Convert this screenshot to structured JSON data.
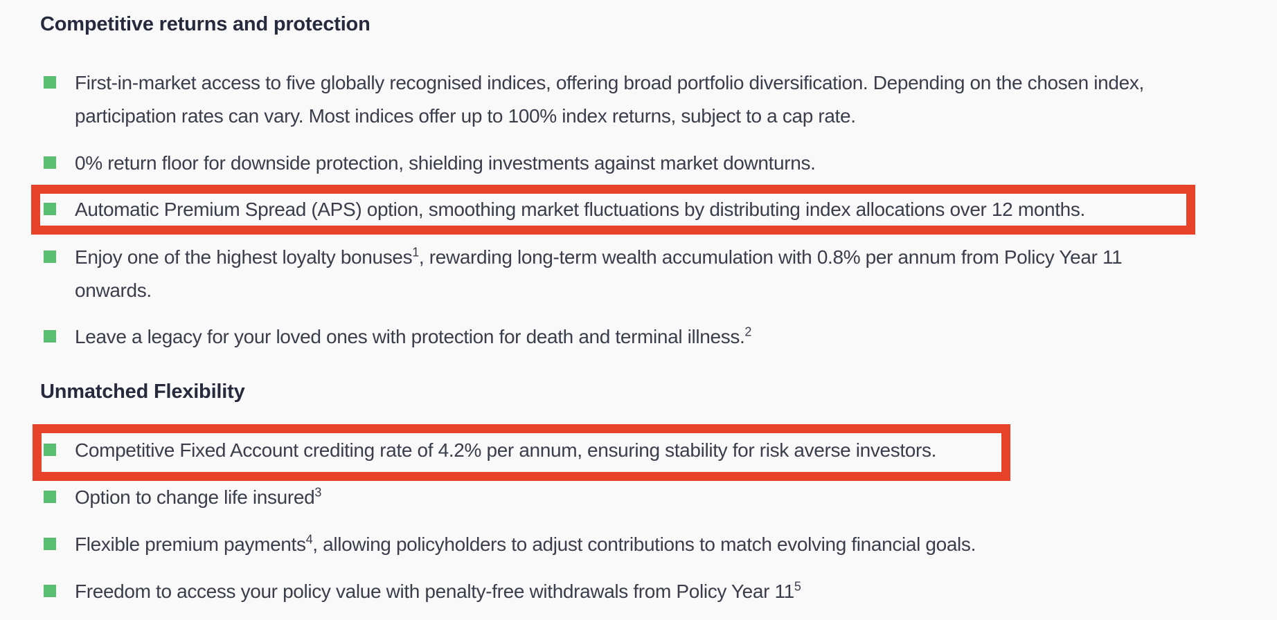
{
  "sections": [
    {
      "heading": "Competitive returns and protection",
      "items": [
        {
          "text": "First-in-market access to five globally recognised indices, offering broad portfolio diversification. Depending on the chosen index, participation rates can vary. Most indices offer up to 100% index returns, subject to a cap rate.",
          "sup": "",
          "rest": "",
          "highlighted": false
        },
        {
          "text": "0% return floor for downside protection, shielding investments against market downturns.",
          "sup": "",
          "rest": "",
          "highlighted": false
        },
        {
          "text": "Automatic Premium Spread (APS) option, smoothing market fluctuations by distributing index allocations over 12 months.",
          "sup": "",
          "rest": "",
          "highlighted": true
        },
        {
          "text": "Enjoy one of the highest loyalty bonuses",
          "sup": "1",
          "rest": ", rewarding long-term wealth accumulation with 0.8% per annum from Policy Year 11 onwards.",
          "highlighted": false
        },
        {
          "text": "Leave a legacy for your loved ones with protection for death and terminal illness.",
          "sup": "2",
          "rest": "",
          "highlighted": false
        }
      ]
    },
    {
      "heading": "Unmatched Flexibility",
      "items": [
        {
          "text": "Competitive Fixed Account crediting rate of 4.2% per annum, ensuring stability for risk averse investors.",
          "sup": "",
          "rest": "",
          "highlighted": true
        },
        {
          "text": "Option to change life insured",
          "sup": "3",
          "rest": "",
          "highlighted": false
        },
        {
          "text": "Flexible premium payments",
          "sup": "4",
          "rest": ", allowing policyholders to adjust contributions to match evolving financial goals.",
          "highlighted": false
        },
        {
          "text": "Freedom to access your policy value with penalty-free withdrawals from Policy Year 11",
          "sup": "5",
          "rest": "",
          "highlighted": false
        }
      ]
    }
  ],
  "colors": {
    "bullet": "#5bbf72",
    "highlight_border": "#e6432a",
    "heading": "#262a3c",
    "text": "#3a3d4a"
  }
}
